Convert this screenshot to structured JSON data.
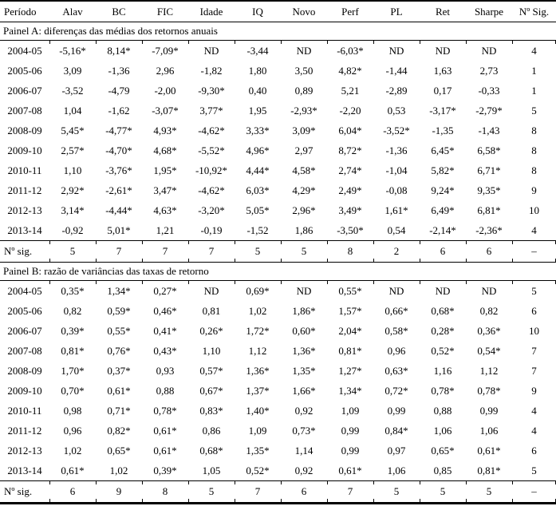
{
  "table": {
    "columns": [
      "Período",
      "Alav",
      "BC",
      "FIC",
      "Idade",
      "IQ",
      "Novo",
      "Perf",
      "PL",
      "Ret",
      "Sharpe",
      "Nº Sig."
    ],
    "panels": [
      {
        "title": "Painel A: diferenças das médias dos retornos anuais",
        "rows": [
          [
            "2004-05",
            "-5,16*",
            "8,14*",
            "-7,09*",
            "ND",
            "-3,44",
            "ND",
            "-6,03*",
            "ND",
            "ND",
            "ND",
            "4"
          ],
          [
            "2005-06",
            "3,09",
            "-1,36",
            "2,96",
            "-1,82",
            "1,80",
            "3,50",
            "4,82*",
            "-1,44",
            "1,63",
            "2,73",
            "1"
          ],
          [
            "2006-07",
            "-3,52",
            "-4,79",
            "-2,00",
            "-9,30*",
            "0,40",
            "0,89",
            "5,21",
            "-2,89",
            "0,17",
            "-0,33",
            "1"
          ],
          [
            "2007-08",
            "1,04",
            "-1,62",
            "-3,07*",
            "3,77*",
            "1,95",
            "-2,93*",
            "-2,20",
            "0,53",
            "-3,17*",
            "-2,79*",
            "5"
          ],
          [
            "2008-09",
            "5,45*",
            "-4,77*",
            "4,93*",
            "-4,62*",
            "3,33*",
            "3,09*",
            "6,04*",
            "-3,52*",
            "-1,35",
            "-1,43",
            "8"
          ],
          [
            "2009-10",
            "2,57*",
            "-4,70*",
            "4,68*",
            "-5,52*",
            "4,96*",
            "2,97",
            "8,72*",
            "-1,36",
            "6,45*",
            "6,58*",
            "8"
          ],
          [
            "2010-11",
            "1,10",
            "-3,76*",
            "1,95*",
            "-10,92*",
            "4,44*",
            "4,58*",
            "2,74*",
            "-1,04",
            "5,82*",
            "6,71*",
            "8"
          ],
          [
            "2011-12",
            "2,92*",
            "-2,61*",
            "3,47*",
            "-4,62*",
            "6,03*",
            "4,29*",
            "2,49*",
            "-0,08",
            "9,24*",
            "9,35*",
            "9"
          ],
          [
            "2012-13",
            "3,14*",
            "-4,44*",
            "4,63*",
            "-3,20*",
            "5,05*",
            "2,96*",
            "3,49*",
            "1,61*",
            "6,49*",
            "6,81*",
            "10"
          ],
          [
            "2013-14",
            "-0,92",
            "5,01*",
            "1,21",
            "-0,19",
            "-1,52",
            "1,86",
            "-3,50*",
            "0,54",
            "-2,14*",
            "-2,36*",
            "4"
          ]
        ],
        "summary": [
          "Nº sig.",
          "5",
          "7",
          "7",
          "7",
          "5",
          "5",
          "8",
          "2",
          "6",
          "6",
          "–"
        ]
      },
      {
        "title": "Painel B: razão de variâncias das taxas de retorno",
        "rows": [
          [
            "2004-05",
            "0,35*",
            "1,34*",
            "0,27*",
            "ND",
            "0,69*",
            "ND",
            "0,55*",
            "ND",
            "ND",
            "ND",
            "5"
          ],
          [
            "2005-06",
            "0,82",
            "0,59*",
            "0,46*",
            "0,81",
            "1,02",
            "1,86*",
            "1,57*",
            "0,66*",
            "0,68*",
            "0,82",
            "6"
          ],
          [
            "2006-07",
            "0,39*",
            "0,55*",
            "0,41*",
            "0,26*",
            "1,72*",
            "0,60*",
            "2,04*",
            "0,58*",
            "0,28*",
            "0,36*",
            "10"
          ],
          [
            "2007-08",
            "0,81*",
            "0,76*",
            "0,43*",
            "1,10",
            "1,12",
            "1,36*",
            "0,81*",
            "0,96",
            "0,52*",
            "0,54*",
            "7"
          ],
          [
            "2008-09",
            "1,70*",
            "0,37*",
            "0,93",
            "0,57*",
            "1,36*",
            "1,35*",
            "1,27*",
            "0,63*",
            "1,16",
            "1,12",
            "7"
          ],
          [
            "2009-10",
            "0,70*",
            "0,61*",
            "0,88",
            "0,67*",
            "1,37*",
            "1,66*",
            "1,34*",
            "0,72*",
            "0,78*",
            "0,78*",
            "9"
          ],
          [
            "2010-11",
            "0,98",
            "0,71*",
            "0,78*",
            "0,83*",
            "1,40*",
            "0,92",
            "1,09",
            "0,99",
            "0,88",
            "0,99",
            "4"
          ],
          [
            "2011-12",
            "0,96",
            "0,82*",
            "0,61*",
            "0,86",
            "1,09",
            "0,73*",
            "0,99",
            "0,84*",
            "1,06",
            "1,06",
            "4"
          ],
          [
            "2012-13",
            "1,02",
            "0,65*",
            "0,61*",
            "0,68*",
            "1,35*",
            "1,14",
            "0,99",
            "0,97",
            "0,65*",
            "0,61*",
            "6"
          ],
          [
            "2013-14",
            "0,61*",
            "1,02",
            "0,39*",
            "1,05",
            "0,52*",
            "0,92",
            "0,61*",
            "1,06",
            "0,85",
            "0,81*",
            "5"
          ]
        ],
        "summary": [
          "Nº sig.",
          "6",
          "9",
          "8",
          "5",
          "7",
          "6",
          "7",
          "5",
          "5",
          "5",
          "–"
        ]
      }
    ]
  }
}
